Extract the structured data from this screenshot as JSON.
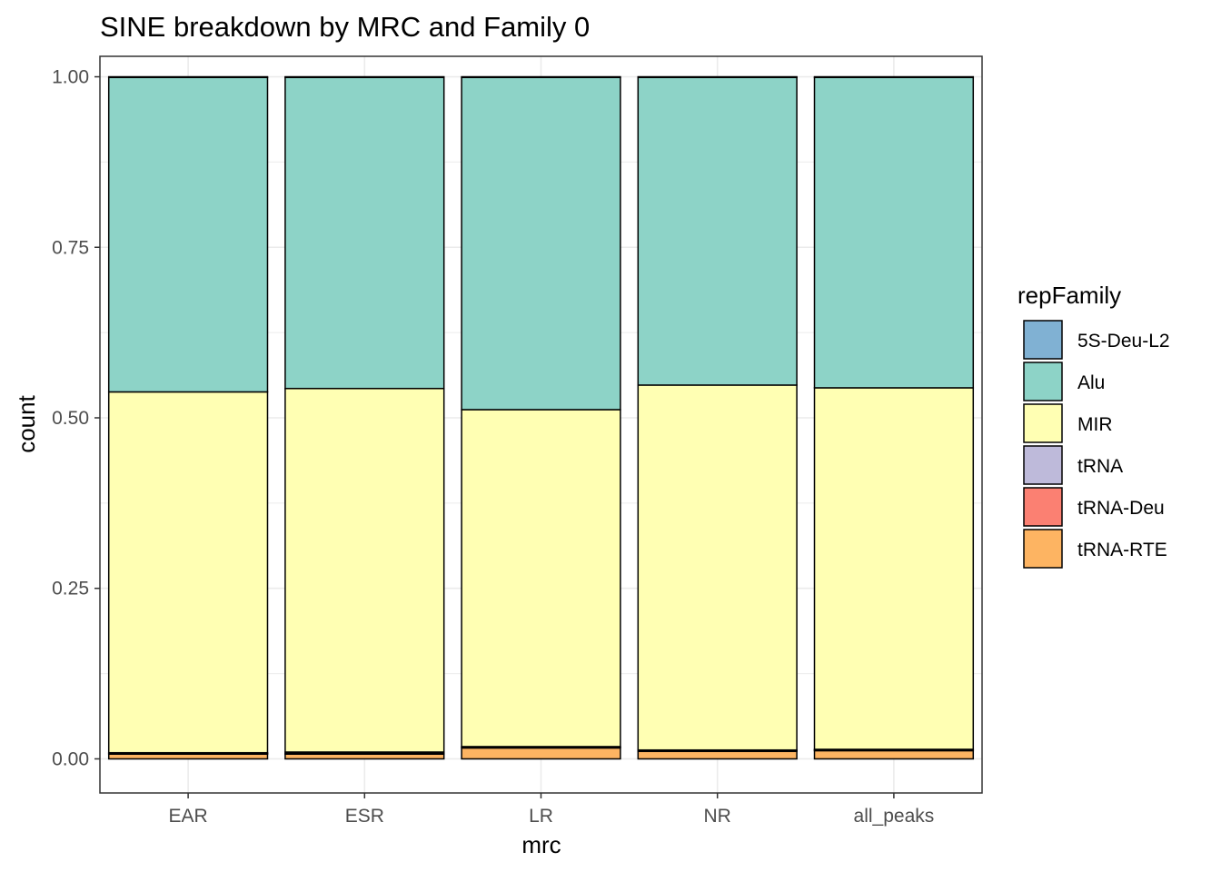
{
  "chart_data": {
    "type": "bar",
    "stacked": true,
    "title": "SINE breakdown by MRC and Family 0",
    "xlabel": "mrc",
    "ylabel": "count",
    "categories": [
      "EAR",
      "ESR",
      "LR",
      "NR",
      "all_peaks"
    ],
    "ylim": [
      -0.05,
      1.03
    ],
    "yticks": [
      0.0,
      0.25,
      0.5,
      0.75,
      1.0
    ],
    "ytick_labels": [
      "0.00",
      "0.25",
      "0.50",
      "0.75",
      "1.00"
    ],
    "grid": true,
    "legend": {
      "title": "repFamily",
      "position": "right",
      "entries": [
        "5S-Deu-L2",
        "Alu",
        "MIR",
        "tRNA",
        "tRNA-Deu",
        "tRNA-RTE"
      ]
    },
    "stack_order_bottom_to_top": [
      "tRNA-RTE",
      "tRNA-Deu",
      "tRNA",
      "MIR",
      "Alu",
      "5S-Deu-L2"
    ],
    "series": [
      {
        "name": "5S-Deu-L2",
        "color": "#80B1D3",
        "values": [
          0.001,
          0.001,
          0.001,
          0.001,
          0.001
        ]
      },
      {
        "name": "Alu",
        "color": "#8DD3C7",
        "values": [
          0.461,
          0.456,
          0.487,
          0.451,
          0.455
        ]
      },
      {
        "name": "MIR",
        "color": "#FFFFB3",
        "values": [
          0.529,
          0.533,
          0.494,
          0.535,
          0.53
        ]
      },
      {
        "name": "tRNA",
        "color": "#BEBADA",
        "values": [
          0.001,
          0.002,
          0.001,
          0.001,
          0.001
        ]
      },
      {
        "name": "tRNA-Deu",
        "color": "#FB8072",
        "values": [
          0.001,
          0.001,
          0.001,
          0.001,
          0.001
        ]
      },
      {
        "name": "tRNA-RTE",
        "color": "#FDB462",
        "values": [
          0.007,
          0.007,
          0.016,
          0.011,
          0.012
        ]
      }
    ]
  }
}
